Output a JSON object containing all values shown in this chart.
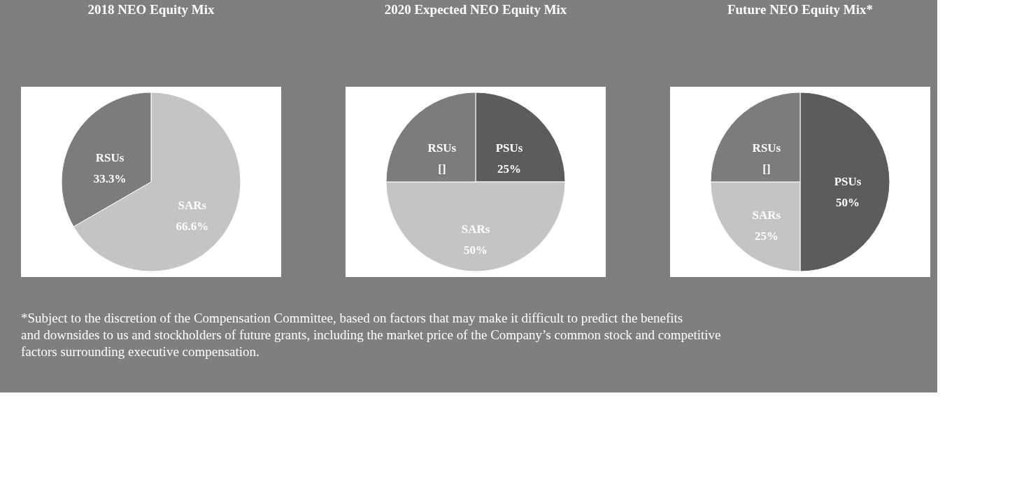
{
  "chart_data": [
    {
      "type": "pie",
      "title": "2018 NEO Equity Mix",
      "categories": [
        "SARs",
        "RSUs"
      ],
      "values": [
        66.6,
        33.3
      ],
      "colors": [
        "#c4c4c4",
        "#7c7c7c"
      ],
      "value_labels": [
        "66.6%",
        "33.3%"
      ],
      "legend": false
    },
    {
      "type": "pie",
      "title": "2020 Expected NEO Equity Mix",
      "categories": [
        "PSUs",
        "SARs",
        "RSUs"
      ],
      "values": [
        25,
        50,
        25
      ],
      "colors": [
        "#5c5c5c",
        "#c4c4c4",
        "#7c7c7c"
      ],
      "value_labels": [
        "25%",
        "50%",
        "[]"
      ],
      "legend": false
    },
    {
      "type": "pie",
      "title": "Future NEO Equity Mix*",
      "categories": [
        "PSUs",
        "SARs",
        "RSUs"
      ],
      "values": [
        50,
        25,
        25
      ],
      "colors": [
        "#5c5c5c",
        "#c4c4c4",
        "#7c7c7c"
      ],
      "value_labels": [
        "50%",
        "25%",
        "[]"
      ],
      "legend": false,
      "annotations": [
        "*Subject to the discretion of the Compensation Committee, based on factors that may make it difficult to predict the benefits and downsides to us and stockholders of future grants, including the market price of the Company’s common stock and competitive factors surrounding executive compensation."
      ]
    }
  ]
}
